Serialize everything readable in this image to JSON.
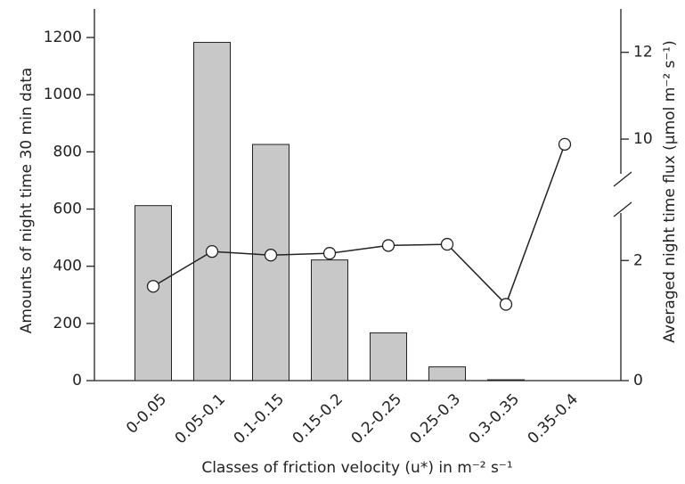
{
  "chart_data": {
    "type": "bar-line",
    "categories": [
      "0-0.05",
      "0.05-0.1",
      "0.1-0.15",
      "0.15-0.2",
      "0.2-0.25",
      "0.25-0.3",
      "0.3-0.35",
      "0.35-0.4"
    ],
    "series": [
      {
        "type": "bar",
        "axis": "y",
        "color": "#c8c8c8",
        "values": [
          612,
          1183,
          826,
          422,
          167,
          48,
          3,
          0
        ]
      },
      {
        "type": "line",
        "axis": "y2",
        "color": "#222222",
        "values": [
          1.57,
          2.15,
          2.09,
          2.12,
          2.25,
          2.27,
          1.27,
          9.88
        ]
      }
    ],
    "xlabel": "Classes of friction velocity (u*) in m⁻² s⁻¹",
    "ylabel": "Amounts of night time 30 min data",
    "y2label": "Averaged night time flux (µmol m⁻² s⁻¹)",
    "ylim": [
      0,
      1300
    ],
    "yticks": [
      0,
      200,
      400,
      600,
      800,
      1000,
      1200
    ],
    "y2lim": [
      0,
      13
    ],
    "y2ticks": [
      0,
      2,
      10,
      12
    ],
    "y2_break": [
      2.85,
      9.2
    ]
  }
}
